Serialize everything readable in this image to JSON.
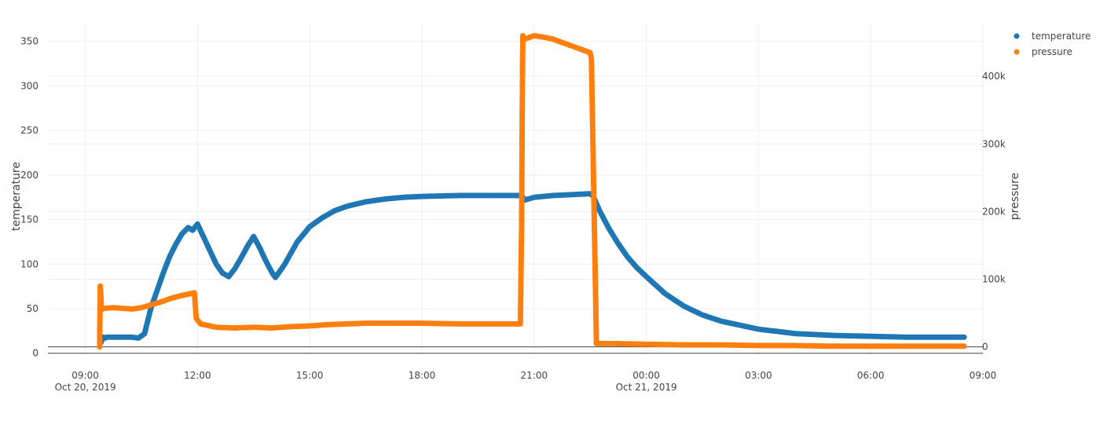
{
  "chart_data": {
    "type": "scatter",
    "title": "",
    "x_axis": {
      "type": "date",
      "range": [
        "2019-10-20T08:00:00",
        "2019-10-21T09:00:00"
      ],
      "ticks": [
        {
          "t": "2019-10-20T09:00:00",
          "label": "09:00",
          "sub": "Oct 20, 2019"
        },
        {
          "t": "2019-10-20T12:00:00",
          "label": "12:00",
          "sub": ""
        },
        {
          "t": "2019-10-20T15:00:00",
          "label": "15:00",
          "sub": ""
        },
        {
          "t": "2019-10-20T18:00:00",
          "label": "18:00",
          "sub": ""
        },
        {
          "t": "2019-10-20T21:00:00",
          "label": "21:00",
          "sub": ""
        },
        {
          "t": "2019-10-21T00:00:00",
          "label": "00:00",
          "sub": "Oct 21, 2019"
        },
        {
          "t": "2019-10-21T03:00:00",
          "label": "03:00",
          "sub": ""
        },
        {
          "t": "2019-10-21T06:00:00",
          "label": "06:00",
          "sub": ""
        },
        {
          "t": "2019-10-21T09:00:00",
          "label": "09:00",
          "sub": ""
        }
      ]
    },
    "y_left": {
      "title": "temperature",
      "range": [
        -2,
        370
      ],
      "ticks": [
        0,
        50,
        100,
        150,
        200,
        250,
        300,
        350
      ],
      "tick_labels": [
        "0",
        "50",
        "100",
        "150",
        "200",
        "250",
        "300",
        "350"
      ]
    },
    "y_right": {
      "title": "pressure",
      "range": [
        -12000,
        478000
      ],
      "ticks": [
        0,
        100000,
        200000,
        300000,
        400000
      ],
      "tick_labels": [
        "0",
        "100k",
        "200k",
        "300k",
        "400k"
      ]
    },
    "grid": true,
    "legend": {
      "position": "top-right"
    },
    "series": [
      {
        "name": "temperature",
        "axis": "left",
        "color": "#1f77b4",
        "points": [
          [
            "2019-10-20T09:25:00",
            12
          ],
          [
            "2019-10-20T09:27:00",
            15
          ],
          [
            "2019-10-20T09:29:00",
            18
          ],
          [
            "2019-10-20T09:31:00",
            17
          ],
          [
            "2019-10-20T09:35:00",
            18
          ],
          [
            "2019-10-20T09:45:00",
            18
          ],
          [
            "2019-10-20T10:00:00",
            18
          ],
          [
            "2019-10-20T10:15:00",
            18
          ],
          [
            "2019-10-20T10:25:00",
            17
          ],
          [
            "2019-10-20T10:35:00",
            22
          ],
          [
            "2019-10-20T10:45:00",
            50
          ],
          [
            "2019-10-20T10:55:00",
            70
          ],
          [
            "2019-10-20T11:05:00",
            90
          ],
          [
            "2019-10-20T11:15:00",
            108
          ],
          [
            "2019-10-20T11:25:00",
            122
          ],
          [
            "2019-10-20T11:35:00",
            134
          ],
          [
            "2019-10-20T11:45:00",
            141
          ],
          [
            "2019-10-20T11:52:00",
            138
          ],
          [
            "2019-10-20T12:00:00",
            145
          ],
          [
            "2019-10-20T12:10:00",
            130
          ],
          [
            "2019-10-20T12:20:00",
            115
          ],
          [
            "2019-10-20T12:30:00",
            100
          ],
          [
            "2019-10-20T12:40:00",
            90
          ],
          [
            "2019-10-20T12:50:00",
            86
          ],
          [
            "2019-10-20T13:00:00",
            95
          ],
          [
            "2019-10-20T13:10:00",
            107
          ],
          [
            "2019-10-20T13:20:00",
            120
          ],
          [
            "2019-10-20T13:30:00",
            131
          ],
          [
            "2019-10-20T13:40:00",
            118
          ],
          [
            "2019-10-20T13:50:00",
            103
          ],
          [
            "2019-10-20T14:00:00",
            90
          ],
          [
            "2019-10-20T14:05:00",
            85
          ],
          [
            "2019-10-20T14:20:00",
            100
          ],
          [
            "2019-10-20T14:40:00",
            125
          ],
          [
            "2019-10-20T15:00:00",
            142
          ],
          [
            "2019-10-20T15:20:00",
            152
          ],
          [
            "2019-10-20T15:40:00",
            160
          ],
          [
            "2019-10-20T16:00:00",
            165
          ],
          [
            "2019-10-20T16:30:00",
            170
          ],
          [
            "2019-10-20T17:00:00",
            173
          ],
          [
            "2019-10-20T17:30:00",
            175
          ],
          [
            "2019-10-20T18:00:00",
            176
          ],
          [
            "2019-10-20T19:00:00",
            177
          ],
          [
            "2019-10-20T20:00:00",
            177
          ],
          [
            "2019-10-20T20:40:00",
            177
          ],
          [
            "2019-10-20T20:45:00",
            172
          ],
          [
            "2019-10-20T21:00:00",
            175
          ],
          [
            "2019-10-20T21:30:00",
            177
          ],
          [
            "2019-10-20T22:00:00",
            178
          ],
          [
            "2019-10-20T22:30:00",
            179
          ],
          [
            "2019-10-20T22:35:00",
            176
          ],
          [
            "2019-10-20T22:45:00",
            160
          ],
          [
            "2019-10-20T23:00:00",
            140
          ],
          [
            "2019-10-20T23:15:00",
            123
          ],
          [
            "2019-10-20T23:30:00",
            108
          ],
          [
            "2019-10-20T23:45:00",
            96
          ],
          [
            "2019-10-21T00:00:00",
            86
          ],
          [
            "2019-10-21T00:30:00",
            67
          ],
          [
            "2019-10-21T01:00:00",
            53
          ],
          [
            "2019-10-21T01:30:00",
            43
          ],
          [
            "2019-10-21T02:00:00",
            36
          ],
          [
            "2019-10-21T03:00:00",
            27
          ],
          [
            "2019-10-21T04:00:00",
            22
          ],
          [
            "2019-10-21T05:00:00",
            20
          ],
          [
            "2019-10-21T06:00:00",
            19
          ],
          [
            "2019-10-21T07:00:00",
            18
          ],
          [
            "2019-10-21T08:00:00",
            18
          ],
          [
            "2019-10-21T08:30:00",
            18
          ]
        ]
      },
      {
        "name": "pressure",
        "axis": "right",
        "color": "#ff7f0e",
        "points": [
          [
            "2019-10-20T09:23:00",
            0
          ],
          [
            "2019-10-20T09:24:00",
            90000
          ],
          [
            "2019-10-20T09:25:00",
            75000
          ],
          [
            "2019-10-20T09:26:00",
            55000
          ],
          [
            "2019-10-20T09:30:00",
            57000
          ],
          [
            "2019-10-20T09:45:00",
            58000
          ],
          [
            "2019-10-20T10:00:00",
            57000
          ],
          [
            "2019-10-20T10:15:00",
            56000
          ],
          [
            "2019-10-20T10:30:00",
            58000
          ],
          [
            "2019-10-20T10:45:00",
            62000
          ],
          [
            "2019-10-20T11:00:00",
            66000
          ],
          [
            "2019-10-20T11:15:00",
            71000
          ],
          [
            "2019-10-20T11:30:00",
            75000
          ],
          [
            "2019-10-20T11:45:00",
            78000
          ],
          [
            "2019-10-20T11:55:00",
            80000
          ],
          [
            "2019-10-20T11:58:00",
            42000
          ],
          [
            "2019-10-20T12:05:00",
            34000
          ],
          [
            "2019-10-20T12:30:00",
            29000
          ],
          [
            "2019-10-20T13:00:00",
            28000
          ],
          [
            "2019-10-20T13:30:00",
            29000
          ],
          [
            "2019-10-20T14:00:00",
            28000
          ],
          [
            "2019-10-20T14:30:00",
            30000
          ],
          [
            "2019-10-20T15:00:00",
            31000
          ],
          [
            "2019-10-20T15:30:00",
            33000
          ],
          [
            "2019-10-20T16:00:00",
            34000
          ],
          [
            "2019-10-20T16:30:00",
            35000
          ],
          [
            "2019-10-20T17:00:00",
            35000
          ],
          [
            "2019-10-20T18:00:00",
            35000
          ],
          [
            "2019-10-20T19:00:00",
            34000
          ],
          [
            "2019-10-20T20:00:00",
            34000
          ],
          [
            "2019-10-20T20:38:00",
            34000
          ],
          [
            "2019-10-20T20:40:00",
            180000
          ],
          [
            "2019-10-20T20:40:30",
            270000
          ],
          [
            "2019-10-20T20:41:00",
            350000
          ],
          [
            "2019-10-20T20:41:30",
            420000
          ],
          [
            "2019-10-20T20:42:00",
            460000
          ],
          [
            "2019-10-20T20:45:00",
            455000
          ],
          [
            "2019-10-20T21:00:00",
            460000
          ],
          [
            "2019-10-20T21:15:00",
            458000
          ],
          [
            "2019-10-20T21:30:00",
            455000
          ],
          [
            "2019-10-20T21:45:00",
            450000
          ],
          [
            "2019-10-20T22:00:00",
            445000
          ],
          [
            "2019-10-20T22:15:00",
            440000
          ],
          [
            "2019-10-20T22:30:00",
            435000
          ],
          [
            "2019-10-20T22:32:00",
            425000
          ],
          [
            "2019-10-20T22:40:00",
            5000
          ],
          [
            "2019-10-20T23:00:00",
            5000
          ],
          [
            "2019-10-21T00:00:00",
            4000
          ],
          [
            "2019-10-21T01:00:00",
            3000
          ],
          [
            "2019-10-21T02:00:00",
            3000
          ],
          [
            "2019-10-21T03:00:00",
            2000
          ],
          [
            "2019-10-21T04:00:00",
            2000
          ],
          [
            "2019-10-21T05:00:00",
            1000
          ],
          [
            "2019-10-21T06:00:00",
            1000
          ],
          [
            "2019-10-21T07:00:00",
            1000
          ],
          [
            "2019-10-21T08:00:00",
            1000
          ],
          [
            "2019-10-21T08:30:00",
            1000
          ]
        ]
      }
    ]
  }
}
